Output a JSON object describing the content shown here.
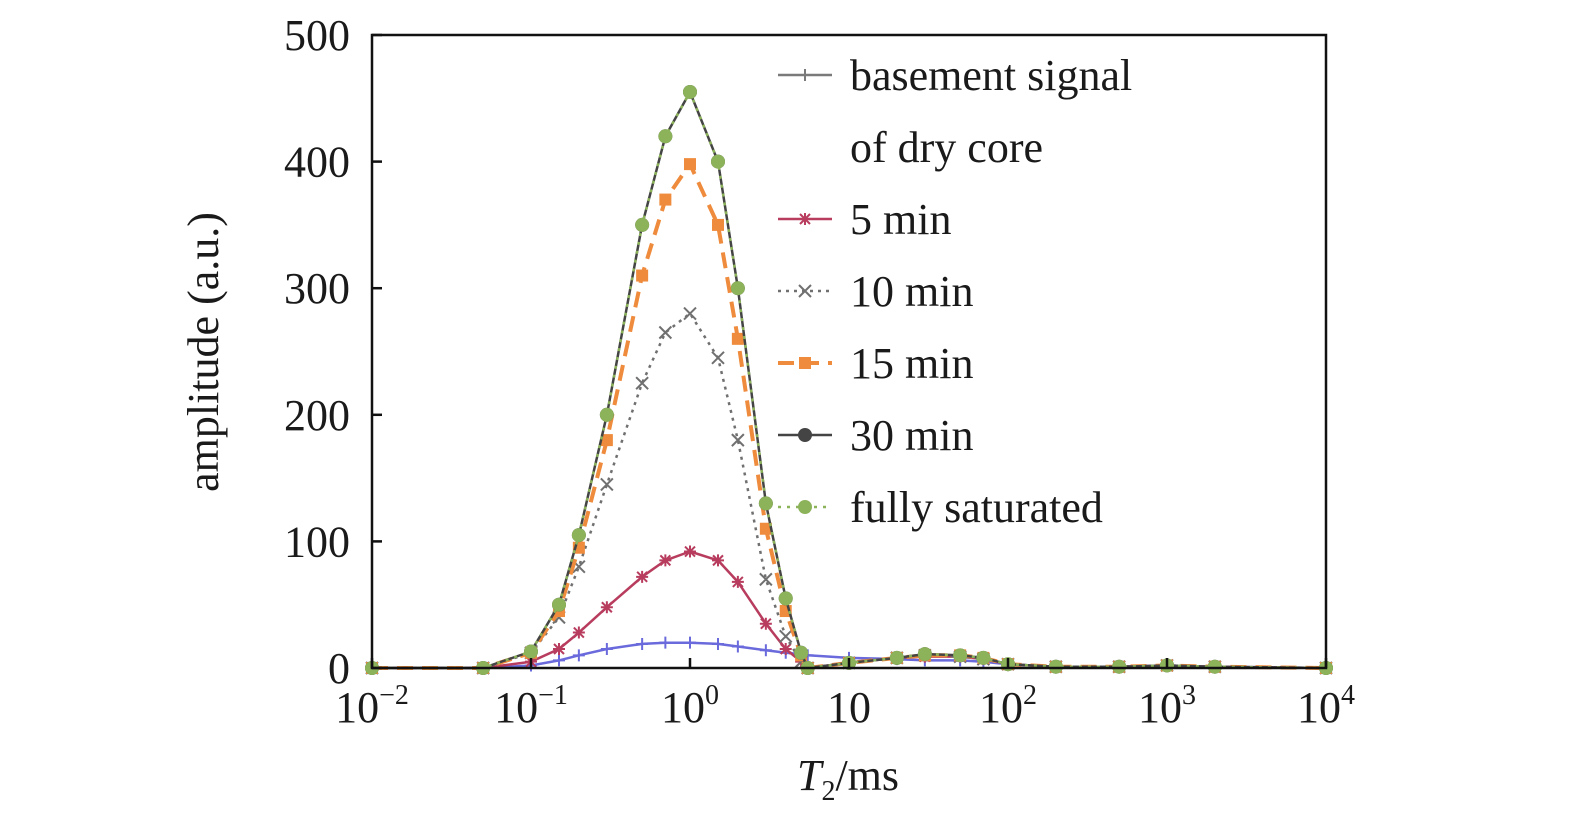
{
  "chart_data": {
    "type": "line",
    "title": "",
    "xlabel_main": "T",
    "xlabel_sub": "2",
    "xlabel_unit": "/ms",
    "ylabel": "amplitude (a.u.)",
    "x_scale": "log",
    "xlim": [
      0.01,
      10000
    ],
    "ylim": [
      0,
      500
    ],
    "grid": false,
    "legend_position": "top-right",
    "x_ticks": [
      {
        "value": 0.01,
        "base": "10",
        "exp": "−2"
      },
      {
        "value": 0.1,
        "base": "10",
        "exp": "−1"
      },
      {
        "value": 1,
        "base": "10",
        "exp": "0"
      },
      {
        "value": 10,
        "base": "10",
        "exp": ""
      },
      {
        "value": 100,
        "base": "10",
        "exp": "2"
      },
      {
        "value": 1000,
        "base": "10",
        "exp": "3"
      },
      {
        "value": 10000,
        "base": "10",
        "exp": "4"
      }
    ],
    "y_ticks": [
      {
        "value": 0,
        "label": "0"
      },
      {
        "value": 100,
        "label": "100"
      },
      {
        "value": 200,
        "label": "200"
      },
      {
        "value": 300,
        "label": "300"
      },
      {
        "value": 400,
        "label": "400"
      },
      {
        "value": 500,
        "label": "500"
      }
    ],
    "x": [
      0.01,
      0.05,
      0.1,
      0.15,
      0.2,
      0.3,
      0.5,
      0.7,
      1.0,
      1.5,
      2.0,
      3.0,
      4.0,
      5.0,
      5.5,
      10,
      20,
      30,
      50,
      70,
      100,
      200,
      500,
      1000,
      2000,
      10000
    ],
    "series": [
      {
        "name": "basement signal of dry core",
        "legend_lines": [
          "basement signal",
          "of dry core"
        ],
        "color": "#6a6adc",
        "legend_color": "#7a7a7a",
        "dash": "",
        "marker": "plus",
        "values": [
          0,
          0,
          2,
          6,
          10,
          15,
          19,
          20,
          20,
          19,
          17,
          14,
          12,
          11,
          10,
          8,
          7,
          6,
          6,
          5,
          3,
          1,
          1,
          2,
          1,
          0
        ]
      },
      {
        "name": "5 min",
        "legend_lines": [
          "5 min"
        ],
        "color": "#b83c5e",
        "dash": "",
        "marker": "star",
        "values": [
          0,
          0,
          5,
          15,
          28,
          48,
          72,
          85,
          92,
          85,
          68,
          35,
          15,
          5,
          0,
          4,
          8,
          9,
          9,
          7,
          3,
          1,
          1,
          2,
          1,
          0
        ]
      },
      {
        "name": "10 min",
        "legend_lines": [
          "10 min"
        ],
        "color": "#707070",
        "dash": "3 5",
        "marker": "x",
        "values": [
          0,
          0,
          12,
          40,
          80,
          145,
          225,
          265,
          280,
          245,
          180,
          70,
          25,
          5,
          0,
          4,
          8,
          10,
          9,
          7,
          3,
          1,
          1,
          2,
          1,
          0
        ]
      },
      {
        "name": "15 min",
        "legend_lines": [
          "15 min"
        ],
        "color": "#ef8b3c",
        "dash": "16 9",
        "marker": "square",
        "values": [
          0,
          0,
          12,
          45,
          95,
          180,
          310,
          370,
          398,
          350,
          260,
          110,
          45,
          10,
          0,
          4,
          8,
          10,
          10,
          8,
          3,
          1,
          1,
          2,
          1,
          0
        ]
      },
      {
        "name": "30 min",
        "legend_lines": [
          "30 min"
        ],
        "color": "#444444",
        "dash": "",
        "marker": "circle",
        "values": [
          0,
          0,
          13,
          50,
          105,
          200,
          350,
          420,
          455,
          400,
          300,
          130,
          55,
          12,
          0,
          4,
          8,
          11,
          10,
          8,
          3,
          1,
          1,
          2,
          1,
          0
        ]
      },
      {
        "name": "fully saturated",
        "legend_lines": [
          "fully saturated"
        ],
        "color": "#8cb35a",
        "dash": "3 6",
        "marker": "circle",
        "values": [
          0,
          0,
          13,
          50,
          105,
          200,
          350,
          420,
          455,
          400,
          300,
          130,
          55,
          12,
          0,
          4,
          8,
          11,
          10,
          8,
          3,
          1,
          1,
          2,
          1,
          0
        ]
      }
    ]
  }
}
